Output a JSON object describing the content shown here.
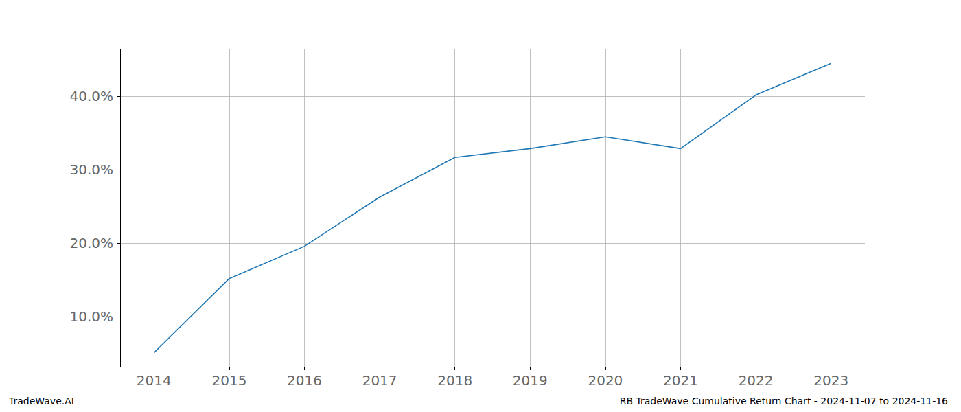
{
  "chart_data": {
    "type": "line",
    "annotations": [
      "TradeWave.AI",
      "RB TradeWave Cumulative Return Chart - 2024-11-07 to 2024-11-16"
    ],
    "x": [
      2014,
      2015,
      2016,
      2017,
      2018,
      2019,
      2020,
      2021,
      2022,
      2023
    ],
    "values": [
      5.1,
      15.2,
      19.6,
      26.3,
      31.7,
      32.9,
      34.5,
      32.9,
      40.2,
      44.5
    ],
    "color": "#1f77b4",
    "xlim": [
      2013.55,
      2023.45
    ],
    "xticks": [
      2014,
      2015,
      2016,
      2017,
      2018,
      2019,
      2020,
      2021,
      2022,
      2023
    ],
    "ylim": [
      3.2,
      46.4
    ],
    "yticks": [
      {
        "value": 10,
        "label": "10.0%"
      },
      {
        "value": 20,
        "label": "20.0%"
      },
      {
        "value": 30,
        "label": "30.0%"
      },
      {
        "value": 40,
        "label": "40.0%"
      }
    ],
    "grid": true
  }
}
